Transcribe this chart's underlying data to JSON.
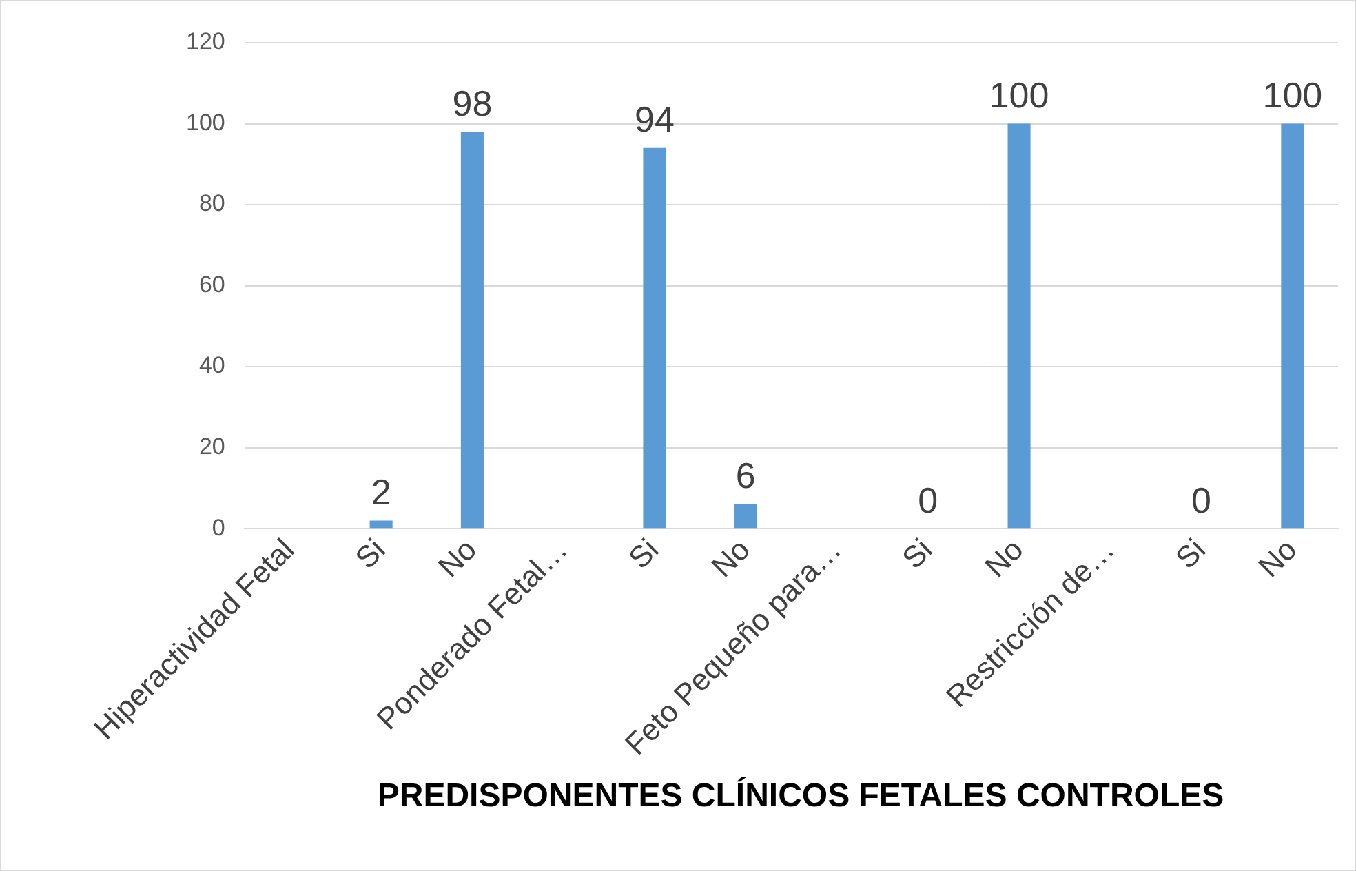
{
  "chart_data": {
    "type": "bar",
    "title": "PREDISPONENTES CLÍNICOS FETALES CONTROLES",
    "categories": [
      "Hiperactividad Fetal",
      "Si",
      "No",
      "Ponderado Fetal…",
      "Si",
      "No",
      "Feto Pequeño para…",
      "Si",
      "No",
      "Restricción de…",
      "Si",
      "No"
    ],
    "values": [
      null,
      2,
      98,
      null,
      94,
      6,
      null,
      0,
      100,
      null,
      0,
      100
    ],
    "color": "#5b9bd5",
    "ylim": [
      0,
      120
    ],
    "yticks": [
      0,
      20,
      40,
      60,
      80,
      100,
      120
    ],
    "grid": "y",
    "data_labels": true,
    "legend": false
  }
}
